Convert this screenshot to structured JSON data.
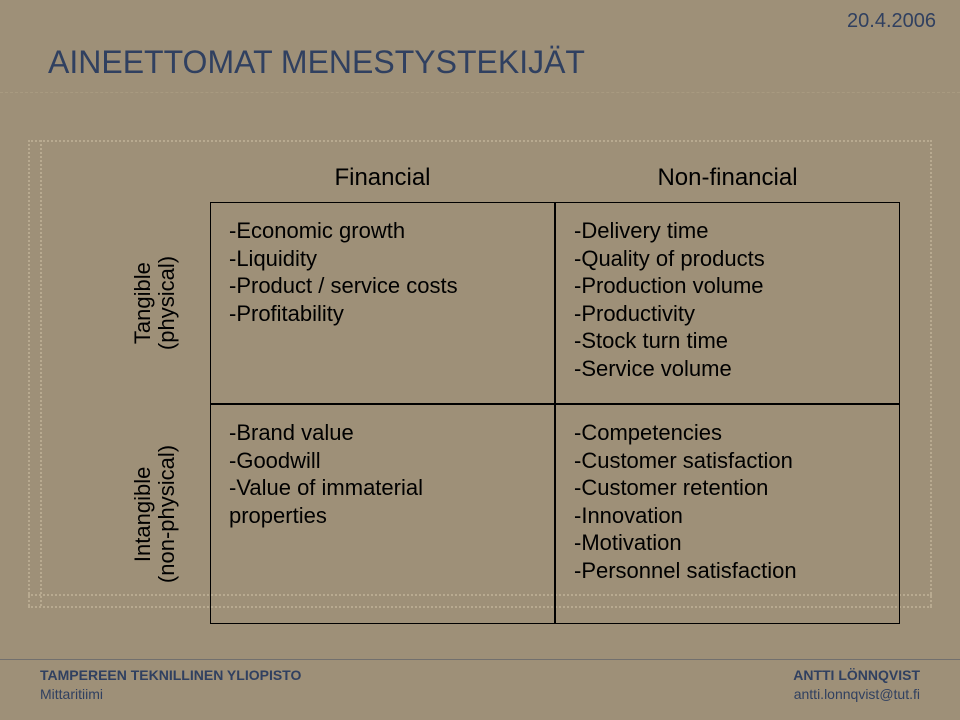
{
  "date": "20.4.2006",
  "title": "AINEETTOMAT MENESTYSTEKIJÄT",
  "matrix": {
    "col_headers": [
      "Financial",
      "Non-financial"
    ],
    "row_labels": [
      {
        "line1": "Tangible",
        "line2": "(physical)"
      },
      {
        "line1": "Intangible",
        "line2": "(non-physical)"
      }
    ],
    "cells": [
      [
        [
          "-Economic growth",
          "-Liquidity",
          "-Product / service costs",
          "-Profitability"
        ],
        [
          "-Delivery time",
          "-Quality of products",
          "-Production volume",
          "-Productivity",
          "-Stock turn time",
          "-Service volume"
        ]
      ],
      [
        [
          "-Brand value",
          "-Goodwill",
          "-Value of immaterial",
          " properties"
        ],
        [
          "-Competencies",
          "-Customer satisfaction",
          "-Customer retention",
          "-Innovation",
          "-Motivation",
          "-Personnel satisfaction"
        ]
      ]
    ]
  },
  "footer": {
    "org": "TAMPEREEN TEKNILLINEN YLIOPISTO",
    "team": "Mittaritiimi",
    "author": "ANTTI LÖNNQVIST",
    "email": "antti.lonnqvist@tut.fi"
  },
  "style": {
    "bg": "#9e9078",
    "title_color": "#304060",
    "footer_color": "#304060",
    "cell_border": "#000000",
    "dotted_guide": "#b8aa90",
    "title_fontsize": 32,
    "body_fontsize": 22,
    "header_fontsize": 24,
    "footer_fontsize": 14
  }
}
